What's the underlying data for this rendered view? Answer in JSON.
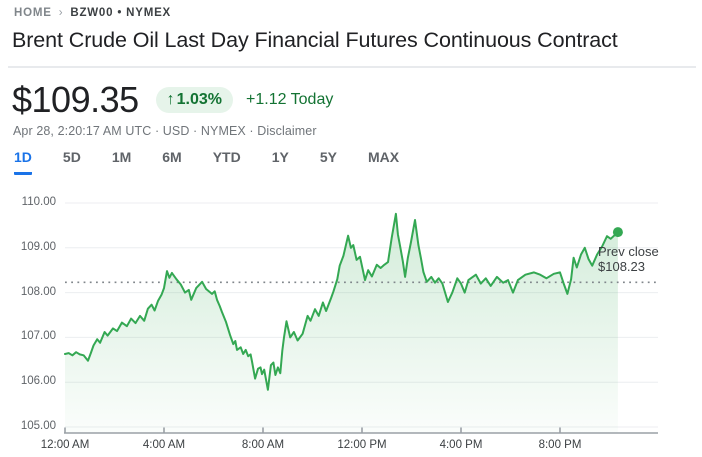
{
  "breadcrumb": {
    "home": "HOME",
    "separator": "›",
    "symbol": "BZW00 • NYMEX"
  },
  "title": "Brent Crude Oil Last Day Financial Futures Continuous Contract",
  "quote": {
    "price": "$109.35",
    "change_pct_arrow": "↑",
    "change_pct": "1.03%",
    "change_abs": "+1.12 Today",
    "meta": "Apr 28, 2:20:17 AM UTC · USD · NYMEX · ",
    "disclaimer": "Disclaimer"
  },
  "tabs": [
    {
      "label": "1D",
      "selected": true
    },
    {
      "label": "5D",
      "selected": false
    },
    {
      "label": "1M",
      "selected": false
    },
    {
      "label": "6M",
      "selected": false
    },
    {
      "label": "YTD",
      "selected": false
    },
    {
      "label": "1Y",
      "selected": false
    },
    {
      "label": "5Y",
      "selected": false
    },
    {
      "label": "MAX",
      "selected": false
    }
  ],
  "colors": {
    "line_green": "#34a853",
    "text_green": "#137333",
    "badge_bg": "#e6f4ea",
    "tab_blue": "#1a73e8",
    "gridline": "#eceef0",
    "axis_gray": "#9aa0a6",
    "dotted_gray": "#80868b"
  },
  "chart_data": {
    "type": "area",
    "series_name": "BZW00 price",
    "x_unit": "hours since 12:00 AM",
    "ylim": [
      105,
      110
    ],
    "grid": true,
    "y_ticks": [
      "110.00",
      "109.00",
      "108.00",
      "107.00",
      "106.00",
      "105.00"
    ],
    "y_tick_values": [
      110,
      109,
      108,
      107,
      106,
      105
    ],
    "x_ticks": [
      {
        "h": 0,
        "label": "12:00 AM"
      },
      {
        "h": 4,
        "label": "4:00 AM"
      },
      {
        "h": 8,
        "label": "8:00 AM"
      },
      {
        "h": 12,
        "label": "12:00 PM"
      },
      {
        "h": 16,
        "label": "4:00 PM"
      },
      {
        "h": 20,
        "label": "8:00 PM"
      }
    ],
    "prev_close": {
      "label": "Prev close",
      "price_label": "$108.23",
      "value": 108.23
    },
    "last_point": {
      "h": 22.34,
      "value": 109.35
    },
    "points": [
      [
        0.0,
        106.63
      ],
      [
        0.15,
        106.65
      ],
      [
        0.3,
        106.6
      ],
      [
        0.45,
        106.67
      ],
      [
        0.6,
        106.62
      ],
      [
        0.75,
        106.6
      ],
      [
        0.93,
        106.48
      ],
      [
        1.05,
        106.66
      ],
      [
        1.15,
        106.82
      ],
      [
        1.3,
        106.96
      ],
      [
        1.42,
        106.88
      ],
      [
        1.6,
        107.12
      ],
      [
        1.72,
        107.04
      ],
      [
        1.94,
        107.2
      ],
      [
        2.1,
        107.14
      ],
      [
        2.3,
        107.33
      ],
      [
        2.5,
        107.25
      ],
      [
        2.67,
        107.42
      ],
      [
        2.85,
        107.32
      ],
      [
        3.03,
        107.48
      ],
      [
        3.2,
        107.37
      ],
      [
        3.35,
        107.64
      ],
      [
        3.5,
        107.73
      ],
      [
        3.62,
        107.6
      ],
      [
        3.76,
        107.82
      ],
      [
        3.9,
        107.95
      ],
      [
        4.0,
        108.1
      ],
      [
        4.12,
        108.48
      ],
      [
        4.22,
        108.33
      ],
      [
        4.32,
        108.44
      ],
      [
        4.5,
        108.3
      ],
      [
        4.68,
        108.18
      ],
      [
        4.85,
        108.0
      ],
      [
        5.0,
        108.06
      ],
      [
        5.1,
        107.84
      ],
      [
        5.3,
        108.1
      ],
      [
        5.54,
        108.24
      ],
      [
        5.7,
        108.08
      ],
      [
        5.94,
        107.97
      ],
      [
        6.05,
        108.03
      ],
      [
        6.14,
        107.84
      ],
      [
        6.25,
        107.7
      ],
      [
        6.34,
        107.57
      ],
      [
        6.5,
        107.35
      ],
      [
        6.67,
        107.05
      ],
      [
        6.8,
        106.85
      ],
      [
        6.88,
        106.92
      ],
      [
        6.95,
        106.72
      ],
      [
        7.1,
        106.78
      ],
      [
        7.2,
        106.63
      ],
      [
        7.3,
        106.72
      ],
      [
        7.4,
        106.58
      ],
      [
        7.5,
        106.62
      ],
      [
        7.56,
        106.45
      ],
      [
        7.68,
        106.08
      ],
      [
        7.8,
        106.3
      ],
      [
        7.9,
        106.33
      ],
      [
        7.96,
        106.18
      ],
      [
        8.05,
        106.28
      ],
      [
        8.2,
        105.83
      ],
      [
        8.32,
        106.38
      ],
      [
        8.42,
        106.44
      ],
      [
        8.5,
        106.16
      ],
      [
        8.6,
        106.33
      ],
      [
        8.7,
        106.2
      ],
      [
        8.78,
        106.7
      ],
      [
        8.85,
        107.0
      ],
      [
        8.95,
        107.36
      ],
      [
        9.1,
        107.0
      ],
      [
        9.25,
        107.12
      ],
      [
        9.4,
        106.93
      ],
      [
        9.6,
        107.08
      ],
      [
        9.8,
        107.48
      ],
      [
        9.92,
        107.37
      ],
      [
        10.1,
        107.63
      ],
      [
        10.25,
        107.48
      ],
      [
        10.42,
        107.78
      ],
      [
        10.55,
        107.59
      ],
      [
        10.75,
        107.88
      ],
      [
        10.85,
        108.03
      ],
      [
        11.0,
        108.3
      ],
      [
        11.1,
        108.6
      ],
      [
        11.25,
        108.82
      ],
      [
        11.44,
        109.27
      ],
      [
        11.55,
        109.0
      ],
      [
        11.65,
        109.06
      ],
      [
        11.78,
        108.73
      ],
      [
        11.92,
        108.8
      ],
      [
        12.12,
        108.28
      ],
      [
        12.25,
        108.5
      ],
      [
        12.4,
        108.36
      ],
      [
        12.6,
        108.62
      ],
      [
        12.75,
        108.55
      ],
      [
        12.9,
        108.62
      ],
      [
        13.05,
        108.68
      ],
      [
        13.2,
        109.22
      ],
      [
        13.37,
        109.76
      ],
      [
        13.45,
        109.3
      ],
      [
        13.55,
        109.0
      ],
      [
        13.65,
        108.7
      ],
      [
        13.74,
        108.35
      ],
      [
        13.85,
        108.77
      ],
      [
        13.98,
        109.13
      ],
      [
        14.14,
        109.62
      ],
      [
        14.28,
        109.06
      ],
      [
        14.38,
        108.77
      ],
      [
        14.48,
        108.46
      ],
      [
        14.62,
        108.24
      ],
      [
        14.8,
        108.35
      ],
      [
        14.95,
        108.22
      ],
      [
        15.1,
        108.32
      ],
      [
        15.25,
        108.2
      ],
      [
        15.47,
        107.79
      ],
      [
        15.65,
        108.0
      ],
      [
        15.85,
        108.32
      ],
      [
        16.0,
        108.2
      ],
      [
        16.15,
        108.0
      ],
      [
        16.3,
        108.28
      ],
      [
        16.6,
        108.4
      ],
      [
        16.8,
        108.2
      ],
      [
        17.0,
        108.32
      ],
      [
        17.2,
        108.15
      ],
      [
        17.45,
        108.35
      ],
      [
        17.7,
        108.22
      ],
      [
        17.9,
        108.28
      ],
      [
        18.1,
        108.0
      ],
      [
        18.3,
        108.28
      ],
      [
        18.6,
        108.4
      ],
      [
        18.95,
        108.45
      ],
      [
        19.2,
        108.4
      ],
      [
        19.45,
        108.32
      ],
      [
        19.75,
        108.42
      ],
      [
        20.0,
        108.45
      ],
      [
        20.15,
        108.2
      ],
      [
        20.3,
        107.97
      ],
      [
        20.45,
        108.3
      ],
      [
        20.55,
        108.78
      ],
      [
        20.68,
        108.56
      ],
      [
        20.85,
        108.85
      ],
      [
        21.0,
        109.0
      ],
      [
        21.15,
        108.75
      ],
      [
        21.3,
        108.6
      ],
      [
        21.5,
        108.85
      ],
      [
        21.7,
        109.03
      ],
      [
        21.9,
        109.26
      ],
      [
        22.05,
        109.2
      ],
      [
        22.34,
        109.35
      ]
    ]
  }
}
